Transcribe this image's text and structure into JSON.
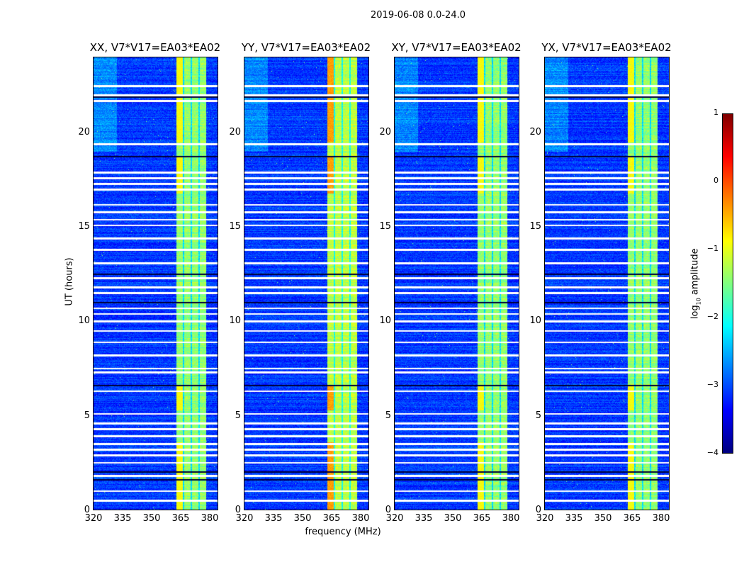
{
  "suptitle": "2019-06-08 0.0-24.0",
  "xlabel": "frequency (MHz)",
  "ylabel": "UT (hours)",
  "colorbar": {
    "label_prefix": "log",
    "label_sub": "10",
    "label_suffix": " amplitude",
    "ticks": [
      "1",
      "0",
      "−1",
      "−2",
      "−3",
      "−4"
    ],
    "values": [
      1,
      0,
      -1,
      -2,
      -3,
      -4
    ],
    "vmin": -4,
    "vmax": 1,
    "colormap": "jet"
  },
  "chart_data": [
    {
      "type": "heatmap",
      "title": "XX, V7*V17=EA03*EA02",
      "xlim": [
        320,
        384
      ],
      "ylim": [
        0,
        24
      ],
      "xticks": [
        "320",
        "335",
        "350",
        "365",
        "380"
      ],
      "yticks": [
        "0",
        "5",
        "10",
        "15",
        "20"
      ],
      "background_level": -3.1,
      "band_level": -1.4,
      "band_peak_level": -0.9
    },
    {
      "type": "heatmap",
      "title": "YY, V7*V17=EA03*EA02",
      "xlim": [
        320,
        384
      ],
      "ylim": [
        0,
        24
      ],
      "xticks": [
        "320",
        "335",
        "350",
        "365",
        "380"
      ],
      "yticks": [
        "0",
        "5",
        "10",
        "15",
        "20"
      ],
      "background_level": -3.1,
      "band_level": -1.2,
      "band_peak_level": -0.4
    },
    {
      "type": "heatmap",
      "title": "XY, V7*V17=EA03*EA02",
      "xlim": [
        320,
        384
      ],
      "ylim": [
        0,
        24
      ],
      "xticks": [
        "320",
        "335",
        "350",
        "365",
        "380"
      ],
      "yticks": [
        "0",
        "5",
        "10",
        "15",
        "20"
      ],
      "background_level": -3.1,
      "band_level": -1.4,
      "band_peak_level": -0.9
    },
    {
      "type": "heatmap",
      "title": "YX, V7*V17=EA03*EA02",
      "xlim": [
        320,
        384
      ],
      "ylim": [
        0,
        24
      ],
      "xticks": [
        "320",
        "335",
        "350",
        "365",
        "380"
      ],
      "yticks": [
        "0",
        "5",
        "10",
        "15",
        "20"
      ],
      "background_level": -3.1,
      "band_level": -1.4,
      "band_peak_level": -0.9
    }
  ],
  "band_channels_mhz": [
    [
      362.5,
      366
    ],
    [
      366.5,
      370
    ],
    [
      370.5,
      374
    ],
    [
      374.5,
      378
    ]
  ],
  "flagged_hours": [
    22.5,
    22.0,
    21.7,
    19.4,
    17.9,
    17.6,
    17.3,
    17.0,
    16.2,
    15.8,
    15.4,
    15.1,
    14.4,
    13.8,
    13.1,
    12.3,
    11.8,
    11.5,
    10.7,
    10.4,
    10.0,
    9.5,
    8.9,
    8.2,
    7.5,
    7.3,
    6.3,
    5.1,
    4.6,
    4.3,
    3.9,
    3.5,
    3.2,
    2.9,
    2.5,
    1.8,
    1.0,
    0.5
  ],
  "dark_gap_hours": [
    21.9,
    18.75,
    12.5,
    11.0,
    6.6,
    2.0,
    1.6
  ]
}
